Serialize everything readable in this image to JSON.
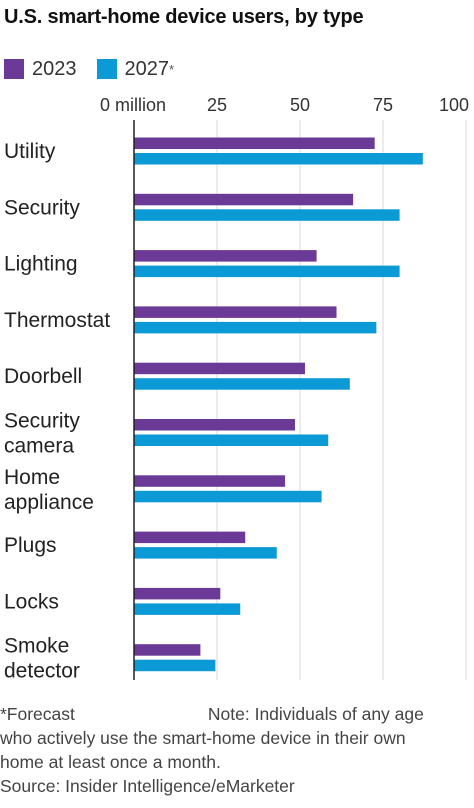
{
  "title": "U.S. smart-home device users, by type",
  "legend": {
    "items": [
      {
        "label": "2023",
        "color": "#6b3a96",
        "asterisk": ""
      },
      {
        "label": "2027",
        "color": "#0c9ad6",
        "asterisk": "*"
      }
    ]
  },
  "chart_data": {
    "type": "bar",
    "orientation": "horizontal",
    "categories": [
      "Utility",
      "Security",
      "Lighting",
      "Thermostat",
      "Doorbell",
      "Security camera",
      "Home appliance",
      "Plugs",
      "Locks",
      "Smoke detector"
    ],
    "series": [
      {
        "name": "2023",
        "color": "#6b3a96",
        "values": [
          72.5,
          66,
          55,
          61,
          51.5,
          48.5,
          45.5,
          33.5,
          26,
          20
        ]
      },
      {
        "name": "2027",
        "color": "#0c9ad6",
        "values": [
          87,
          80,
          80,
          73,
          65,
          58.5,
          56.5,
          43,
          32,
          24.5
        ]
      }
    ],
    "xlim": [
      0,
      100
    ],
    "ticks": [
      0,
      25,
      50,
      75,
      100
    ],
    "tick_labels": [
      "0 million",
      "25",
      "50",
      "75",
      "100"
    ],
    "grid": true
  },
  "notes": {
    "forecast": "*Forecast",
    "note_lines": [
      "Note: Individuals of any age",
      "who actively use the smart-home device in their own",
      "home at least once a month."
    ],
    "source": "Source: Insider Intelligence/eMarketer"
  }
}
